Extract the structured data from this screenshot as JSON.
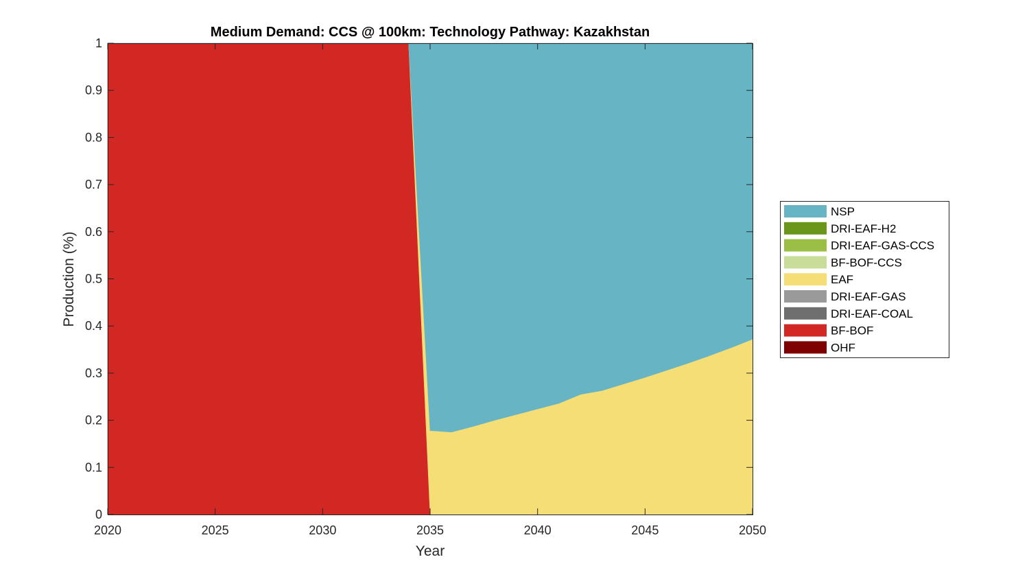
{
  "chart_data": {
    "type": "area",
    "title": "Medium Demand: CCS @ 100km: Technology Pathway: Kazakhstan",
    "xlabel": "Year",
    "ylabel": "Production (%)",
    "xlim": [
      2020,
      2050
    ],
    "ylim": [
      0,
      1
    ],
    "xticks": [
      2020,
      2025,
      2030,
      2035,
      2040,
      2045,
      2050
    ],
    "yticks": [
      0,
      0.1,
      0.2,
      0.3,
      0.4,
      0.5,
      0.6,
      0.7,
      0.8,
      0.9,
      1
    ],
    "ytick_labels": [
      "0",
      "0.1",
      "0.2",
      "0.3",
      "0.4",
      "0.5",
      "0.6",
      "0.7",
      "0.8",
      "0.9",
      "1"
    ],
    "grid": false,
    "stacked": true,
    "legend_position": "right",
    "x": [
      2020,
      2021,
      2022,
      2023,
      2024,
      2025,
      2026,
      2027,
      2028,
      2029,
      2030,
      2031,
      2032,
      2033,
      2034,
      2035,
      2036,
      2037,
      2038,
      2039,
      2040,
      2041,
      2042,
      2043,
      2044,
      2045,
      2046,
      2047,
      2048,
      2049,
      2050
    ],
    "series": [
      {
        "name": "OHF",
        "color": "#7f0000",
        "values": [
          0,
          0,
          0,
          0,
          0,
          0,
          0,
          0,
          0,
          0,
          0,
          0,
          0,
          0,
          0,
          0,
          0,
          0,
          0,
          0,
          0,
          0,
          0,
          0,
          0,
          0,
          0,
          0,
          0,
          0,
          0
        ]
      },
      {
        "name": "BF-BOF",
        "color": "#d12824",
        "values": [
          1,
          1,
          1,
          1,
          1,
          1,
          1,
          1,
          1,
          1,
          1,
          1,
          1,
          1,
          1,
          0,
          0,
          0,
          0,
          0,
          0,
          0,
          0,
          0,
          0,
          0,
          0,
          0,
          0,
          0,
          0
        ]
      },
      {
        "name": "DRI-EAF-COAL",
        "color": "#6f6f6f",
        "values": [
          0,
          0,
          0,
          0,
          0,
          0,
          0,
          0,
          0,
          0,
          0,
          0,
          0,
          0,
          0,
          0,
          0,
          0,
          0,
          0,
          0,
          0,
          0,
          0,
          0,
          0,
          0,
          0,
          0,
          0,
          0
        ]
      },
      {
        "name": "DRI-EAF-GAS",
        "color": "#9a9a9a",
        "values": [
          0,
          0,
          0,
          0,
          0,
          0,
          0,
          0,
          0,
          0,
          0,
          0,
          0,
          0,
          0,
          0,
          0,
          0,
          0,
          0,
          0,
          0,
          0,
          0,
          0,
          0,
          0,
          0,
          0,
          0,
          0
        ]
      },
      {
        "name": "EAF",
        "color": "#f6de77",
        "values": [
          0,
          0,
          0,
          0,
          0,
          0,
          0,
          0,
          0,
          0,
          0,
          0,
          0,
          0,
          0,
          0.178,
          0.175,
          0.187,
          0.2,
          0.212,
          0.224,
          0.236,
          0.255,
          0.263,
          0.277,
          0.291,
          0.306,
          0.321,
          0.337,
          0.354,
          0.372
        ]
      },
      {
        "name": "BF-BOF-CCS",
        "color": "#c7dd98",
        "values": [
          0,
          0,
          0,
          0,
          0,
          0,
          0,
          0,
          0,
          0,
          0,
          0,
          0,
          0,
          0,
          0,
          0,
          0,
          0,
          0,
          0,
          0,
          0,
          0,
          0,
          0,
          0,
          0,
          0,
          0,
          0
        ]
      },
      {
        "name": "DRI-EAF-GAS-CCS",
        "color": "#9bbf45",
        "values": [
          0,
          0,
          0,
          0,
          0,
          0,
          0,
          0,
          0,
          0,
          0,
          0,
          0,
          0,
          0,
          0,
          0,
          0,
          0,
          0,
          0,
          0,
          0,
          0,
          0,
          0,
          0,
          0,
          0,
          0,
          0
        ]
      },
      {
        "name": "DRI-EAF-H2",
        "color": "#6a961a",
        "values": [
          0,
          0,
          0,
          0,
          0,
          0,
          0,
          0,
          0,
          0,
          0,
          0,
          0,
          0,
          0,
          0,
          0,
          0,
          0,
          0,
          0,
          0,
          0,
          0,
          0,
          0,
          0,
          0,
          0,
          0,
          0
        ]
      },
      {
        "name": "NSP",
        "color": "#67b4c4",
        "values": [
          0,
          0,
          0,
          0,
          0,
          0,
          0,
          0,
          0,
          0,
          0,
          0,
          0,
          0,
          0,
          0.822,
          0.825,
          0.813,
          0.8,
          0.788,
          0.776,
          0.764,
          0.745,
          0.737,
          0.723,
          0.709,
          0.694,
          0.679,
          0.663,
          0.646,
          0.628
        ]
      }
    ],
    "legend_order": [
      "NSP",
      "DRI-EAF-H2",
      "DRI-EAF-GAS-CCS",
      "BF-BOF-CCS",
      "EAF",
      "DRI-EAF-GAS",
      "DRI-EAF-COAL",
      "BF-BOF",
      "OHF"
    ]
  }
}
